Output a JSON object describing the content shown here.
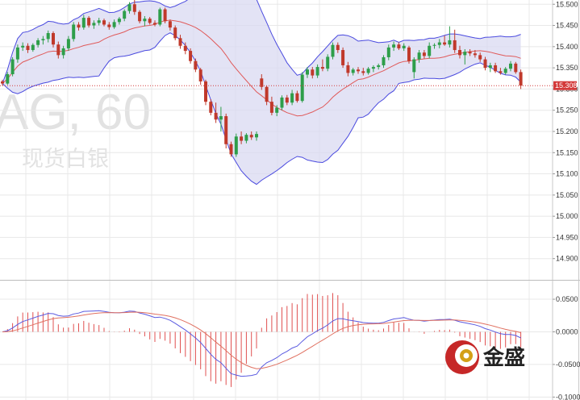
{
  "watermark": {
    "symbol": "AG, 60",
    "name": "现货白银"
  },
  "logo": {
    "text": "金盛"
  },
  "colors": {
    "up": "#2e9e4a",
    "down": "#c0392b",
    "band_fill": "#d9d9f2",
    "band_line": "#4a4adf",
    "mid_line": "#e05a5a",
    "macd_line": "#5a5ae0",
    "signal_line": "#e07060",
    "hist": "#e05050",
    "price_tag": "#d33a3a",
    "grid": "#e8e8e8"
  },
  "chart_data": [
    {
      "type": "candlestick",
      "title": "",
      "indicators": [
        "Bollinger Bands"
      ],
      "y_ticks": [
        "15.500",
        "15.450",
        "15.400",
        "15.350",
        "15.300",
        "15.250",
        "15.200",
        "15.150",
        "15.100",
        "15.050",
        "15.000",
        "14.950",
        "14.900"
      ],
      "ylim": [
        14.85,
        15.51
      ],
      "last_price": "15.308",
      "grid": true,
      "candles": [
        [
          15.318,
          15.322,
          15.308,
          15.313
        ],
        [
          15.313,
          15.34,
          15.31,
          15.335
        ],
        [
          15.335,
          15.375,
          15.33,
          15.37
        ],
        [
          15.37,
          15.405,
          15.362,
          15.398
        ],
        [
          15.398,
          15.41,
          15.39,
          15.402
        ],
        [
          15.402,
          15.408,
          15.385,
          15.392
        ],
        [
          15.392,
          15.408,
          15.388,
          15.404
        ],
        [
          15.404,
          15.42,
          15.398,
          15.415
        ],
        [
          15.415,
          15.425,
          15.405,
          15.418
        ],
        [
          15.418,
          15.438,
          15.41,
          15.432
        ],
        [
          15.432,
          15.436,
          15.398,
          15.405
        ],
        [
          15.405,
          15.412,
          15.372,
          15.38
        ],
        [
          15.38,
          15.402,
          15.372,
          15.396
        ],
        [
          15.396,
          15.425,
          15.39,
          15.418
        ],
        [
          15.418,
          15.458,
          15.412,
          15.452
        ],
        [
          15.452,
          15.458,
          15.438,
          15.445
        ],
        [
          15.445,
          15.475,
          15.44,
          15.468
        ],
        [
          15.468,
          15.472,
          15.445,
          15.45
        ],
        [
          15.45,
          15.462,
          15.442,
          15.456
        ],
        [
          15.456,
          15.468,
          15.45,
          15.462
        ],
        [
          15.462,
          15.466,
          15.448,
          15.452
        ],
        [
          15.452,
          15.458,
          15.44,
          15.446
        ],
        [
          15.446,
          15.464,
          15.442,
          15.458
        ],
        [
          15.458,
          15.47,
          15.452,
          15.466
        ],
        [
          15.466,
          15.488,
          15.46,
          15.484
        ],
        [
          15.484,
          15.505,
          15.478,
          15.5
        ],
        [
          15.5,
          15.512,
          15.475,
          15.482
        ],
        [
          15.482,
          15.486,
          15.455,
          15.46
        ],
        [
          15.46,
          15.472,
          15.448,
          15.466
        ],
        [
          15.466,
          15.47,
          15.452,
          15.456
        ],
        [
          15.456,
          15.462,
          15.448,
          15.452
        ],
        [
          15.452,
          15.492,
          15.448,
          15.488
        ],
        [
          15.488,
          15.492,
          15.455,
          15.46
        ],
        [
          15.46,
          15.464,
          15.438,
          15.445
        ],
        [
          15.445,
          15.45,
          15.415,
          15.42
        ],
        [
          15.42,
          15.428,
          15.395,
          15.402
        ],
        [
          15.402,
          15.41,
          15.382,
          15.39
        ],
        [
          15.39,
          15.396,
          15.36,
          15.366
        ],
        [
          15.366,
          15.372,
          15.34,
          15.346
        ],
        [
          15.346,
          15.35,
          15.31,
          15.318
        ],
        [
          15.318,
          15.322,
          15.262,
          15.27
        ],
        [
          15.27,
          15.276,
          15.238,
          15.244
        ],
        [
          15.244,
          15.268,
          15.22,
          15.228
        ],
        [
          15.228,
          15.258,
          15.2,
          15.236
        ],
        [
          15.236,
          15.242,
          15.16,
          15.17
        ],
        [
          15.17,
          15.176,
          15.14,
          15.146
        ],
        [
          15.146,
          15.195,
          15.14,
          15.188
        ],
        [
          15.188,
          15.2,
          15.17,
          15.178
        ],
        [
          15.178,
          15.196,
          15.172,
          15.192
        ],
        [
          15.192,
          15.2,
          15.18,
          15.186
        ],
        [
          15.186,
          15.2,
          15.178,
          15.194
        ],
        [
          15.325,
          15.335,
          15.298,
          15.305
        ],
        [
          15.305,
          15.308,
          15.262,
          15.27
        ],
        [
          15.27,
          15.282,
          15.238,
          15.244
        ],
        [
          15.244,
          15.262,
          15.236,
          15.256
        ],
        [
          15.256,
          15.285,
          15.25,
          15.28
        ],
        [
          15.28,
          15.286,
          15.262,
          15.268
        ],
        [
          15.268,
          15.298,
          15.262,
          15.29
        ],
        [
          15.29,
          15.296,
          15.268,
          15.272
        ],
        [
          15.272,
          15.34,
          15.268,
          15.334
        ],
        [
          15.334,
          15.352,
          15.326,
          15.346
        ],
        [
          15.346,
          15.352,
          15.325,
          15.332
        ],
        [
          15.332,
          15.358,
          15.326,
          15.352
        ],
        [
          15.352,
          15.37,
          15.342,
          15.348
        ],
        [
          15.348,
          15.382,
          15.342,
          15.376
        ],
        [
          15.376,
          15.41,
          15.37,
          15.404
        ],
        [
          15.404,
          15.41,
          15.385,
          15.392
        ],
        [
          15.392,
          15.398,
          15.35,
          15.356
        ],
        [
          15.356,
          15.364,
          15.33,
          15.338
        ],
        [
          15.338,
          15.35,
          15.332,
          15.346
        ],
        [
          15.346,
          15.352,
          15.336,
          15.342
        ],
        [
          15.342,
          15.35,
          15.332,
          15.338
        ],
        [
          15.338,
          15.352,
          15.334,
          15.348
        ],
        [
          15.348,
          15.356,
          15.34,
          15.352
        ],
        [
          15.352,
          15.36,
          15.346,
          15.356
        ],
        [
          15.356,
          15.38,
          15.35,
          15.375
        ],
        [
          15.375,
          15.405,
          15.368,
          15.398
        ],
        [
          15.398,
          15.412,
          15.39,
          15.405
        ],
        [
          15.405,
          15.41,
          15.392,
          15.396
        ],
        [
          15.396,
          15.408,
          15.39,
          15.402
        ],
        [
          15.398,
          15.402,
          15.36,
          15.366
        ],
        [
          15.34,
          15.375,
          15.325,
          15.37
        ],
        [
          15.37,
          15.392,
          15.362,
          15.386
        ],
        [
          15.386,
          15.392,
          15.372,
          15.378
        ],
        [
          15.378,
          15.41,
          15.372,
          15.402
        ],
        [
          15.402,
          15.408,
          15.395,
          15.404
        ],
        [
          15.404,
          15.418,
          15.396,
          15.41
        ],
        [
          15.41,
          15.426,
          15.402,
          15.405
        ],
        [
          15.405,
          15.448,
          15.398,
          15.415
        ],
        [
          15.415,
          15.44,
          15.385,
          15.392
        ],
        [
          15.392,
          15.402,
          15.372,
          15.38
        ],
        [
          15.38,
          15.394,
          15.358,
          15.388
        ],
        [
          15.388,
          15.394,
          15.378,
          15.384
        ],
        [
          15.384,
          15.392,
          15.374,
          15.38
        ],
        [
          15.38,
          15.386,
          15.364,
          15.37
        ],
        [
          15.37,
          15.376,
          15.344,
          15.35
        ],
        [
          15.35,
          15.362,
          15.34,
          15.356
        ],
        [
          15.356,
          15.362,
          15.338,
          15.342
        ],
        [
          15.342,
          15.35,
          15.334,
          15.338
        ],
        [
          15.338,
          15.352,
          15.334,
          15.348
        ],
        [
          15.348,
          15.366,
          15.342,
          15.36
        ],
        [
          15.36,
          15.364,
          15.336,
          15.34
        ],
        [
          15.34,
          15.346,
          15.3,
          15.308
        ]
      ]
    },
    {
      "type": "macd",
      "title": "",
      "y_ticks": [
        "0.0500",
        "0.0000",
        "-0.0500",
        "-0.1000"
      ],
      "ylim": [
        -0.1045,
        0.0785
      ],
      "grid": true
    }
  ]
}
